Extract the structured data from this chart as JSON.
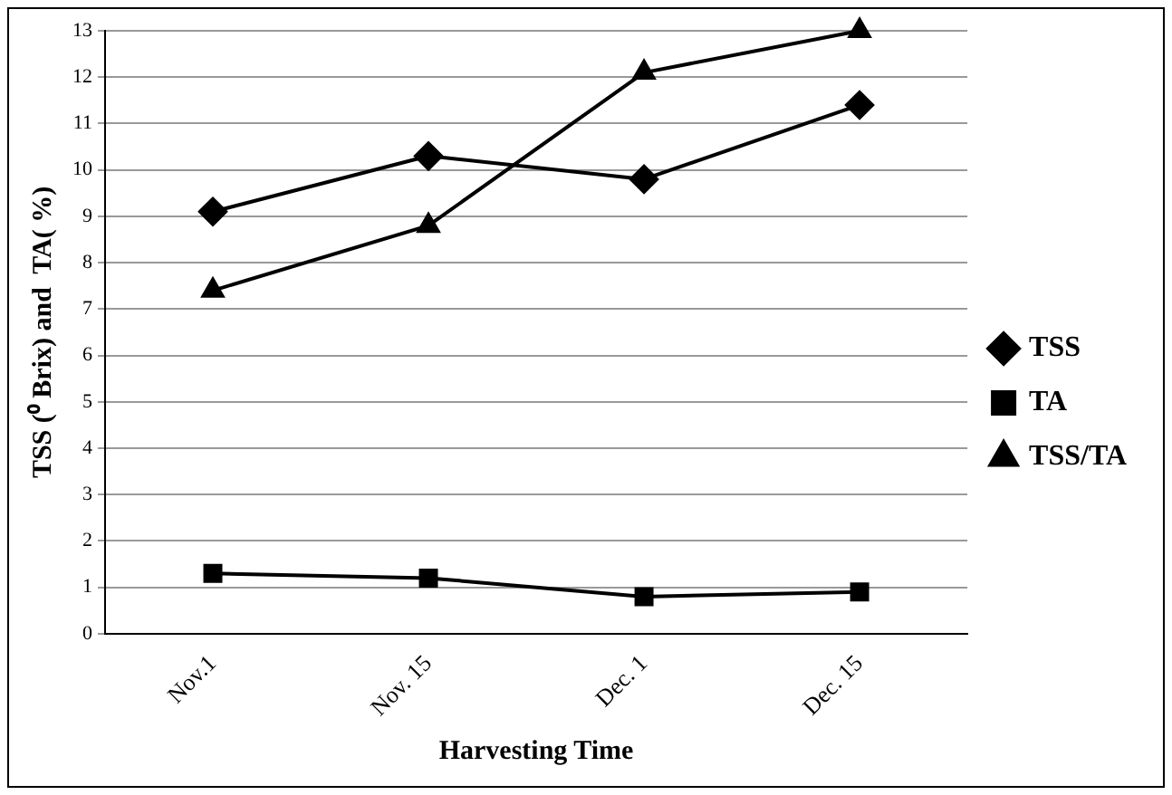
{
  "chart_data": {
    "type": "line",
    "xlabel": "Harvesting Time",
    "ylabel": "TSS (⁰ Brix) and  TA( %)",
    "categories": [
      "Nov.1",
      "Nov. 15",
      "Dec. 1",
      "Dec. 15"
    ],
    "series": [
      {
        "name": "TSS",
        "color": "#000000",
        "marker": "diamond",
        "values": [
          9.1,
          10.3,
          9.8,
          11.4
        ]
      },
      {
        "name": "TA",
        "color": "#000000",
        "marker": "square",
        "values": [
          1.3,
          1.2,
          0.8,
          0.9
        ]
      },
      {
        "name": "TSS/TA",
        "color": "#000000",
        "marker": "triangle",
        "values": [
          7.4,
          8.8,
          12.1,
          13.0
        ]
      }
    ],
    "ylim": [
      0,
      13
    ],
    "yticks": [
      0,
      1,
      2,
      3,
      4,
      5,
      6,
      7,
      8,
      9,
      10,
      11,
      12,
      13
    ],
    "grid": "y",
    "legend": "right",
    "line_style": "solid"
  }
}
